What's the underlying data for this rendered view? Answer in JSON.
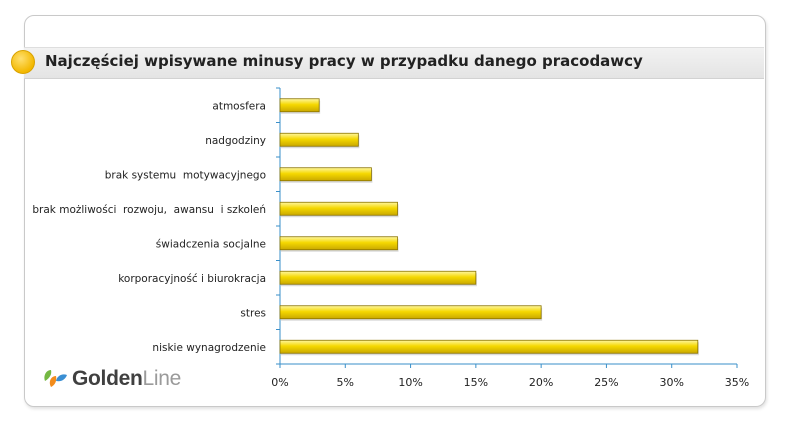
{
  "chart_data": {
    "type": "bar",
    "orientation": "horizontal",
    "title": "Najczęściej wpisywane minusy pracy w przypadku danego pracodawcy",
    "categories": [
      "atmosfera",
      "nadgodziny",
      "brak systemu  motywacyjnego",
      "brak możliwości  rozwoju,  awansu  i szkoleń",
      "świadczenia socjalne",
      "korporacyjność i biurokracja",
      "stres",
      "niskie wynagrodzenie"
    ],
    "values": [
      3,
      6,
      7,
      9,
      9,
      15,
      20,
      32
    ],
    "xlim": [
      0,
      35
    ],
    "x_ticks": [
      0,
      5,
      10,
      15,
      20,
      25,
      30,
      35
    ],
    "x_tick_labels": [
      "0%",
      "5%",
      "10%",
      "15%",
      "20%",
      "25%",
      "30%",
      "35%"
    ],
    "xlabel": "",
    "ylabel": "",
    "grid": false,
    "legend": "none",
    "bar_color": "#f5d800",
    "bar_edge_color": "#8a7300",
    "axis_color": "#3a8fc9"
  },
  "logo": {
    "golden": "Golden",
    "line": "Line"
  },
  "colors": {
    "title_dot": "#f3b800",
    "logo_green": "#74b843",
    "logo_orange": "#f28c1c",
    "logo_blue": "#3b8fd3"
  }
}
